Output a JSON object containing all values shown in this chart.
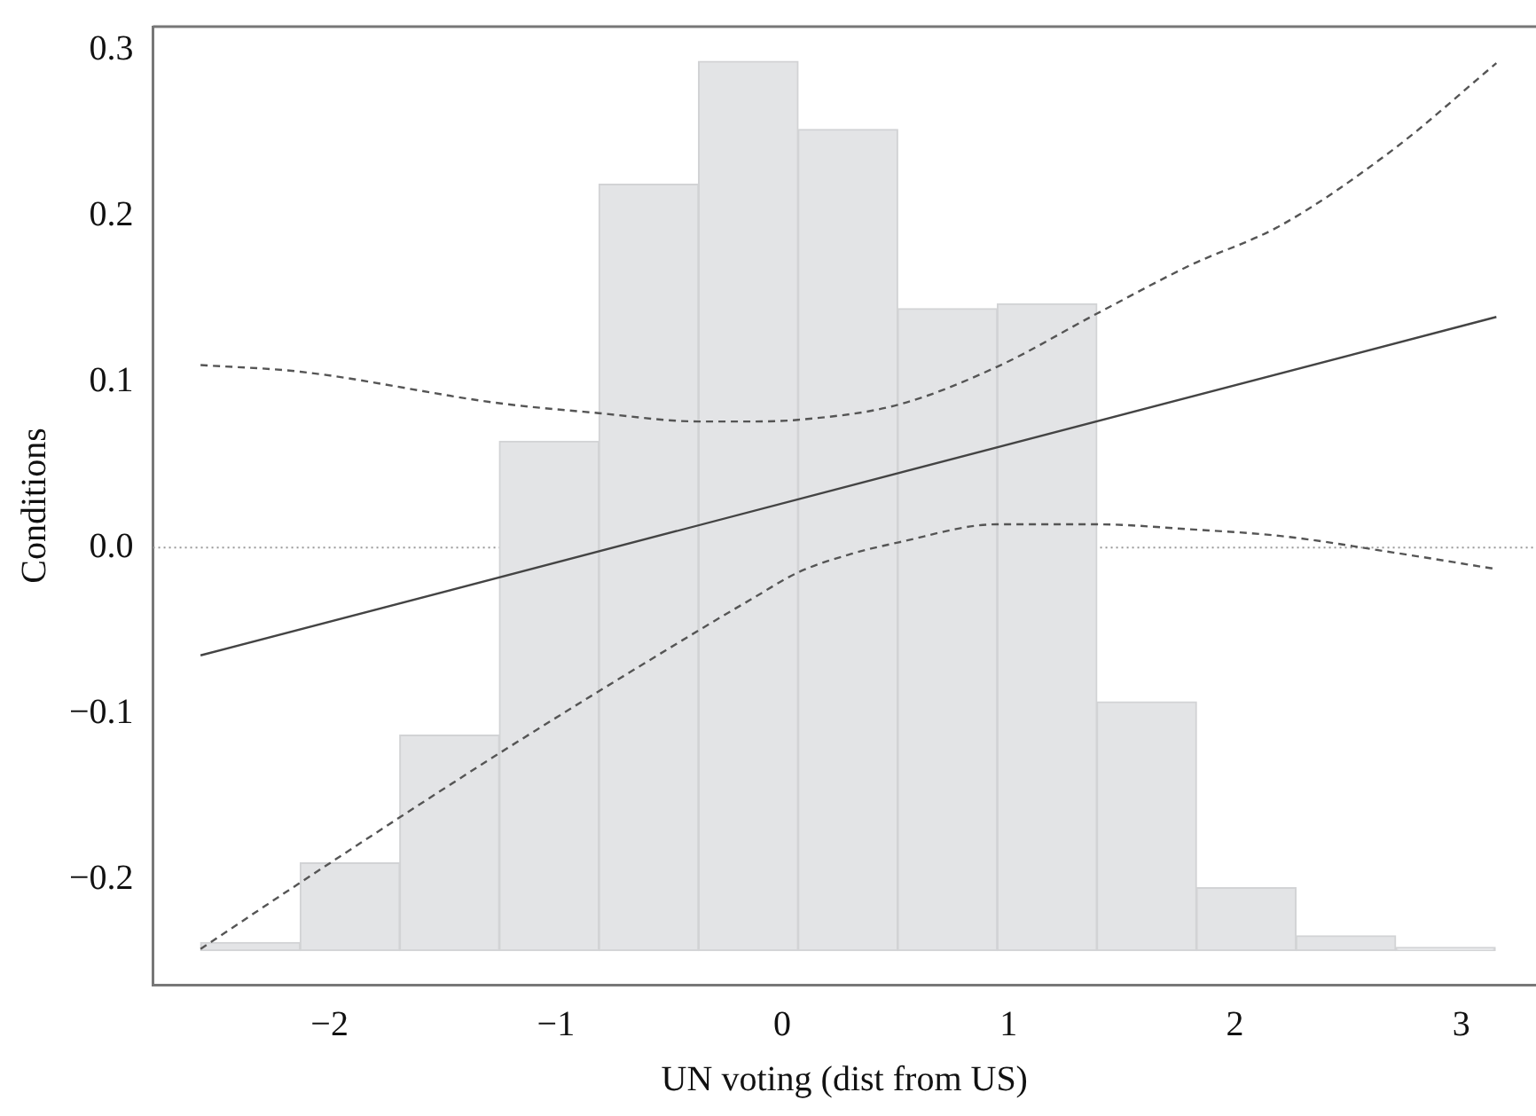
{
  "chart_data": {
    "type": "line",
    "xlabel": "UN voting (dist from US)",
    "ylabel": "Conditions",
    "xlim": [
      -2.78,
      3.33
    ],
    "ylim": [
      -0.2635,
      0.314
    ],
    "xticks": [
      {
        "value": -2,
        "label": "−2"
      },
      {
        "value": -1,
        "label": "−1"
      },
      0,
      1,
      2,
      3
    ],
    "yticks": [
      {
        "value": -0.2,
        "label": "−0.2"
      },
      {
        "value": -0.1,
        "label": "−0.1"
      },
      {
        "value": 0,
        "label": "0.0"
      },
      0.1,
      0.2,
      0.3
    ],
    "grid": false,
    "legend": false,
    "ref_lines": [
      {
        "axis": "y",
        "value": 0,
        "color": "#999999",
        "line_style": "dotted"
      }
    ],
    "series": [
      {
        "type": "histogram",
        "color": "#e3e4e6",
        "bins": [
          -2.57,
          -2.13,
          -1.69,
          -1.25,
          -0.81,
          -0.37,
          0.07,
          0.51,
          0.95,
          1.39,
          1.83,
          2.27,
          2.71,
          3.15
        ],
        "base": [
          -0.243,
          -0.243,
          -0.243,
          -0.243,
          -0.243,
          -0.243,
          -0.243,
          -0.243,
          -0.243,
          -0.243,
          -0.243,
          -0.243,
          -0.243
        ],
        "values": [
          0.005,
          0.053,
          0.13,
          0.307,
          0.462,
          0.536,
          0.495,
          0.387,
          0.39,
          0.15,
          0.038,
          0.009,
          0.002
        ]
      },
      {
        "color": "#444444",
        "line_style": "solid",
        "x": [
          -2.57,
          3.155
        ],
        "values": [
          -0.065,
          0.139
        ]
      },
      {
        "color": "#555555",
        "line_style": "dashed",
        "x": [
          -2.57,
          -2.13,
          -1.25,
          -0.81,
          -0.37,
          -0.135,
          0.07,
          0.51,
          0.95,
          1.39,
          1.8,
          2.2,
          2.7,
          3.155
        ],
        "values": [
          0.11,
          0.106,
          0.087,
          0.081,
          0.076,
          0.076,
          0.077,
          0.086,
          0.109,
          0.141,
          0.17,
          0.194,
          0.24,
          0.292
        ]
      },
      {
        "color": "#555555",
        "line_style": "dashed",
        "x": [
          -2.57,
          -2.13,
          -1.25,
          -0.37,
          -0.135,
          0.07,
          0.3,
          0.51,
          0.95,
          1.39,
          1.8,
          2.2,
          2.7,
          3.155
        ],
        "values": [
          -0.242,
          -0.202,
          -0.124,
          -0.05,
          -0.031,
          -0.015,
          -0.004,
          0.003,
          0.014,
          0.014,
          0.011,
          0.007,
          -0.003,
          -0.013
        ]
      }
    ]
  }
}
